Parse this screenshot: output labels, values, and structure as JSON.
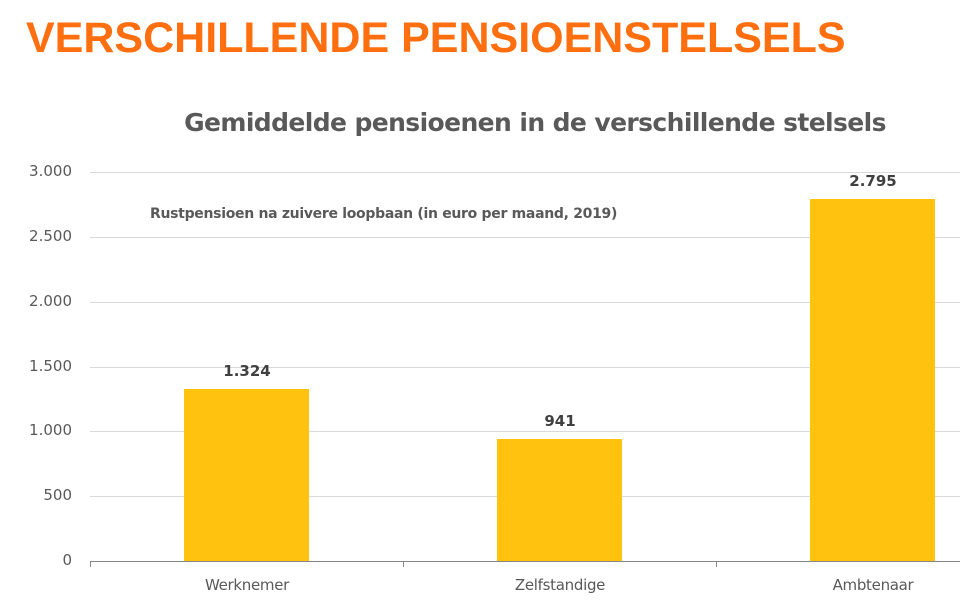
{
  "slide": {
    "title": "VERSCHILLENDE PENSIOENSTELSELS"
  },
  "colors": {
    "title": "#FF6F0F",
    "bar": "#FFC20E",
    "text": "#595959",
    "gridline": "#D9D9D9"
  },
  "chart_data": {
    "type": "bar",
    "title": "Gemiddelde pensioenen in de verschillende stelsels",
    "subtitle": "Rustpensioen na zuivere loopbaan (in euro per maand, 2019)",
    "categories": [
      "Werknemer",
      "Zelfstandige",
      "Ambtenaar"
    ],
    "values": [
      1324,
      941,
      2795
    ],
    "value_labels": [
      "1.324",
      "941",
      "2.795"
    ],
    "xlabel": "",
    "ylabel": "",
    "ylim": [
      0,
      3000
    ],
    "yticks": [
      0,
      500,
      1000,
      1500,
      2000,
      2500,
      3000
    ],
    "ytick_labels": [
      "0",
      "500",
      "1.000",
      "1.500",
      "2.000",
      "2.500",
      "3.000"
    ],
    "grid": true,
    "legend": false,
    "bar_color": "#FFC20E"
  }
}
